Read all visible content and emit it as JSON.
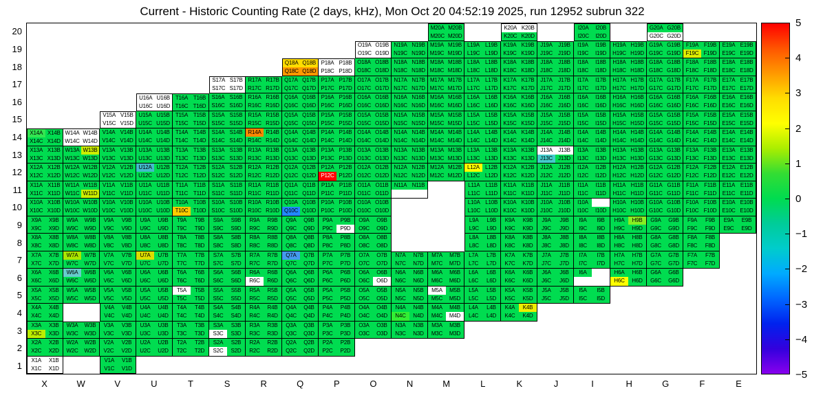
{
  "title": "Current - Historic Counting Rate (2 days, kHz), Mon Oct 20 04:52:19 2025, run 12952 subrun 322",
  "axes": {
    "x_labels": [
      "X",
      "W",
      "V",
      "U",
      "T",
      "S",
      "R",
      "Q",
      "P",
      "O",
      "N",
      "M",
      "L",
      "K",
      "J",
      "I",
      "H",
      "G",
      "F",
      "E"
    ],
    "y_labels": [
      "20",
      "19",
      "18",
      "17",
      "16",
      "15",
      "14",
      "13",
      "12",
      "11",
      "10",
      "9",
      "8",
      "7",
      "6",
      "5",
      "4",
      "3",
      "2",
      "1"
    ]
  },
  "colorbar": {
    "ticks": [
      "5",
      "4",
      "3",
      "2",
      "1",
      "0",
      "−1",
      "−2",
      "−3",
      "−4",
      "−5"
    ],
    "max": 5,
    "min": -5,
    "gradient": [
      "#FF0000",
      "#FF5500",
      "#FF9900",
      "#FFDD00",
      "#FFFF00",
      "#AAEE00",
      "#33DD33",
      "#00DC50",
      "#00CC99",
      "#00CCCC",
      "#00AAFF",
      "#0066FF",
      "#0022EE",
      "#3300DD",
      "#8800EE"
    ]
  },
  "colors": {
    "base": "#00DC50",
    "empty": "#FFFFFF",
    "red_cell_text": "#FFFFFF"
  },
  "grid": {
    "channel_letters": [
      "A",
      "B",
      "C",
      "D"
    ],
    "rows": [
      {
        "row": "20",
        "cols": [
          "M",
          "K",
          "I",
          "G"
        ]
      },
      {
        "row": "19",
        "cols": [
          "O",
          "N",
          "M",
          "L",
          "K",
          "J",
          "I",
          "H",
          "G",
          "F",
          "E"
        ]
      },
      {
        "row": "18",
        "cols": [
          "Q",
          "P",
          "O",
          "N",
          "M",
          "L",
          "K",
          "J",
          "I",
          "H",
          "G",
          "F",
          "E"
        ]
      },
      {
        "row": "17",
        "cols": [
          "S",
          "R",
          "Q",
          "P",
          "O",
          "N",
          "M",
          "L",
          "K",
          "J",
          "I",
          "H",
          "G",
          "F",
          "E"
        ]
      },
      {
        "row": "16",
        "cols": [
          "U",
          "T",
          "S",
          "R",
          "Q",
          "P",
          "O",
          "N",
          "M",
          "L",
          "K",
          "J",
          "I",
          "H",
          "G",
          "F",
          "E"
        ]
      },
      {
        "row": "15",
        "cols": [
          "V",
          "U",
          "T",
          "S",
          "R",
          "Q",
          "P",
          "O",
          "N",
          "M",
          "L",
          "K",
          "J",
          "I",
          "H",
          "G",
          "F",
          "E"
        ]
      },
      {
        "row": "14",
        "cols": [
          "X",
          "W",
          "V",
          "U",
          "T",
          "S",
          "R",
          "Q",
          "P",
          "O",
          "N",
          "M",
          "L",
          "K",
          "J",
          "I",
          "H",
          "G",
          "F",
          "E"
        ]
      },
      {
        "row": "13",
        "cols": [
          "X",
          "W",
          "V",
          "U",
          "T",
          "S",
          "R",
          "Q",
          "P",
          "O",
          "N",
          "M",
          "L",
          "K",
          "J",
          "I",
          "H",
          "G",
          "F",
          "E"
        ]
      },
      {
        "row": "12",
        "cols": [
          "X",
          "W",
          "V",
          "U",
          "T",
          "S",
          "R",
          "Q",
          "P",
          "O",
          "N",
          "M",
          "L",
          "K",
          "J",
          "I",
          "H",
          "G",
          "F",
          "E"
        ]
      },
      {
        "row": "11",
        "cols": [
          "X",
          "W",
          "V",
          "U",
          "T",
          "S",
          "R",
          "Q",
          "P",
          "O",
          "N",
          "L",
          "K",
          "J",
          "I",
          "H",
          "G",
          "F",
          "E"
        ]
      },
      {
        "row": "10",
        "cols": [
          "X",
          "W",
          "V",
          "U",
          "T",
          "S",
          "R",
          "Q",
          "P",
          "O",
          "L",
          "K",
          "J",
          "I",
          "H",
          "G",
          "F",
          "E"
        ]
      },
      {
        "row": "9",
        "cols": [
          "X",
          "W",
          "V",
          "U",
          "T",
          "S",
          "R",
          "Q",
          "P",
          "O",
          "L",
          "K",
          "J",
          "I",
          "H",
          "G",
          "F",
          "E"
        ]
      },
      {
        "row": "8",
        "cols": [
          "X",
          "W",
          "V",
          "U",
          "T",
          "S",
          "R",
          "Q",
          "P",
          "O",
          "L",
          "K",
          "J",
          "I",
          "H",
          "G",
          "F"
        ]
      },
      {
        "row": "7",
        "cols": [
          "X",
          "W",
          "V",
          "U",
          "T",
          "S",
          "R",
          "Q",
          "P",
          "O",
          "N",
          "M",
          "L",
          "K",
          "J",
          "I",
          "H",
          "G",
          "F"
        ]
      },
      {
        "row": "6",
        "cols": [
          "X",
          "W",
          "V",
          "U",
          "T",
          "S",
          "R",
          "Q",
          "P",
          "O",
          "N",
          "M",
          "L",
          "K",
          "J",
          "I",
          "H",
          "G"
        ]
      },
      {
        "row": "5",
        "cols": [
          "X",
          "W",
          "V",
          "U",
          "T",
          "S",
          "R",
          "Q",
          "P",
          "O",
          "N",
          "M",
          "L",
          "K",
          "J",
          "I"
        ]
      },
      {
        "row": "4",
        "cols": [
          "X",
          "V",
          "U",
          "T",
          "S",
          "R",
          "Q",
          "P",
          "O",
          "N",
          "M",
          "L",
          "K"
        ]
      },
      {
        "row": "3",
        "cols": [
          "X",
          "W",
          "V",
          "U",
          "T",
          "S",
          "R",
          "Q",
          "P",
          "O",
          "N",
          "M"
        ]
      },
      {
        "row": "2",
        "cols": [
          "X",
          "W",
          "V",
          "U",
          "T",
          "S",
          "R",
          "Q",
          "P"
        ]
      },
      {
        "row": "1",
        "cols": [
          "X",
          "V"
        ]
      }
    ],
    "anomalies": {
      "K20": {
        "A": "w",
        "B": "w"
      },
      "G20": {
        "C": "w",
        "D": "w"
      },
      "O19": {
        "A": "w",
        "B": "w",
        "C": "w",
        "D": "w"
      },
      "F19": {
        "C": "#DDEE00"
      },
      "Q18": {
        "A": "#FFDD00",
        "B": "#FFDD00",
        "C": "#FF9900",
        "D": "#FF9900"
      },
      "P18": {
        "A": "w",
        "B": "w",
        "C": "w",
        "D": "w"
      },
      "S17": {
        "A": "w",
        "B": "w",
        "C": "w",
        "D": "w"
      },
      "U16": {
        "A": "w",
        "B": "w",
        "C": "w",
        "D": "w"
      },
      "V15": {
        "A": "w",
        "B": "w",
        "C": "w",
        "D": "w"
      },
      "W14": {
        "A": "w",
        "B": "w",
        "C": "w",
        "D": "w"
      },
      "X14": {
        "A": "#33E651"
      },
      "R14": {
        "A": "#FF8800"
      },
      "W13": {
        "B": "#CCEE00"
      },
      "J13": {
        "A": "w",
        "B": "w",
        "C": "#44CCCC"
      },
      "U12": {
        "A": "#44BBCC"
      },
      "P12": {
        "C": "#FF0000"
      },
      "L12": {
        "A": "#FFFF00"
      },
      "W11": {
        "D": "#CCEE00"
      },
      "N11": {
        "C": "x",
        "D": "x"
      },
      "T10": {
        "C": "#FFCC00"
      },
      "Q10": {
        "C": "#2288FF"
      },
      "I10": {
        "B": "x"
      },
      "P9": {
        "D": "w"
      },
      "H9": {
        "B": "#88EE22"
      },
      "W7": {
        "A": "#AAE600"
      },
      "U7": {
        "A": "#DDDD00"
      },
      "Q7": {
        "A": "#4499EE"
      },
      "W6": {
        "A": "#66CCCC"
      },
      "R6": {
        "C": "w"
      },
      "O6": {
        "D": "w"
      },
      "I6": {
        "B": "x",
        "C": "x",
        "D": "x"
      },
      "H6": {
        "C": "#FFFF00"
      },
      "T5": {
        "A": "w"
      },
      "M5": {
        "A": "w"
      },
      "N4": {
        "C": "#33EE33"
      },
      "M4": {
        "D": "w"
      },
      "K4": {
        "B": "#EEEE00"
      },
      "X3": {
        "C": "#BBEE00"
      },
      "S3": {
        "C": "w"
      },
      "S2": {
        "C": "w"
      },
      "X1": {
        "A": "w",
        "B": "w",
        "C": "w",
        "D": "w"
      }
    }
  },
  "chart_data": {
    "type": "heatmap",
    "title": "Current - Historic Counting Rate (2 days, kHz), Mon Oct 20 04:52:19 2025, run 12952 subrun 322",
    "x_categories": [
      "X",
      "W",
      "V",
      "U",
      "T",
      "S",
      "R",
      "Q",
      "P",
      "O",
      "N",
      "M",
      "L",
      "K",
      "J",
      "I",
      "H",
      "G",
      "F",
      "E"
    ],
    "y_categories": [
      20,
      19,
      18,
      17,
      16,
      15,
      14,
      13,
      12,
      11,
      10,
      9,
      8,
      7,
      6,
      5,
      4,
      3,
      2,
      1
    ],
    "zlim": [
      -5,
      5
    ],
    "legend_position": "right-colorbar",
    "grid": "cell-borders-on-filled-bins",
    "baseline_value": 0,
    "cell_structure": "each (column,row) module holds 4 channels A,B (top) and C,D (bottom)",
    "anomaly_values": {
      "F19C": 2,
      "Q18A": 2.5,
      "Q18B": 2.5,
      "Q18C": 3.5,
      "Q18D": 3.5,
      "X14A": 0.5,
      "R14A": 4,
      "W13B": 1.8,
      "J13C": -1.2,
      "U12A": -1.3,
      "P12C": 5,
      "L12A": 2,
      "W11D": 1.8,
      "T10C": 2.7,
      "Q10C": -2.5,
      "H9B": 1.2,
      "W7A": 1.5,
      "U7A": 2,
      "Q7A": -2,
      "W6A": -1,
      "H6C": 2,
      "N4C": 0.8,
      "K4B": 2,
      "X3C": 1.7
    },
    "no_data_channels": [
      "K20A",
      "K20B",
      "G20C",
      "G20D",
      "O19A",
      "O19B",
      "O19C",
      "O19D",
      "P18A",
      "P18B",
      "P18C",
      "P18D",
      "S17A",
      "S17B",
      "S17C",
      "S17D",
      "U16A",
      "U16B",
      "U16C",
      "U16D",
      "V15A",
      "V15B",
      "V15C",
      "V15D",
      "W14A",
      "W14B",
      "W14C",
      "W14D",
      "J13A",
      "J13B",
      "N11C",
      "N11D",
      "I10B",
      "P9D",
      "R6C",
      "O6D",
      "I6B",
      "I6C",
      "I6D",
      "T5A",
      "M5A",
      "M4D",
      "S3C",
      "S2C",
      "X1A",
      "X1B",
      "X1C",
      "X1D"
    ]
  }
}
